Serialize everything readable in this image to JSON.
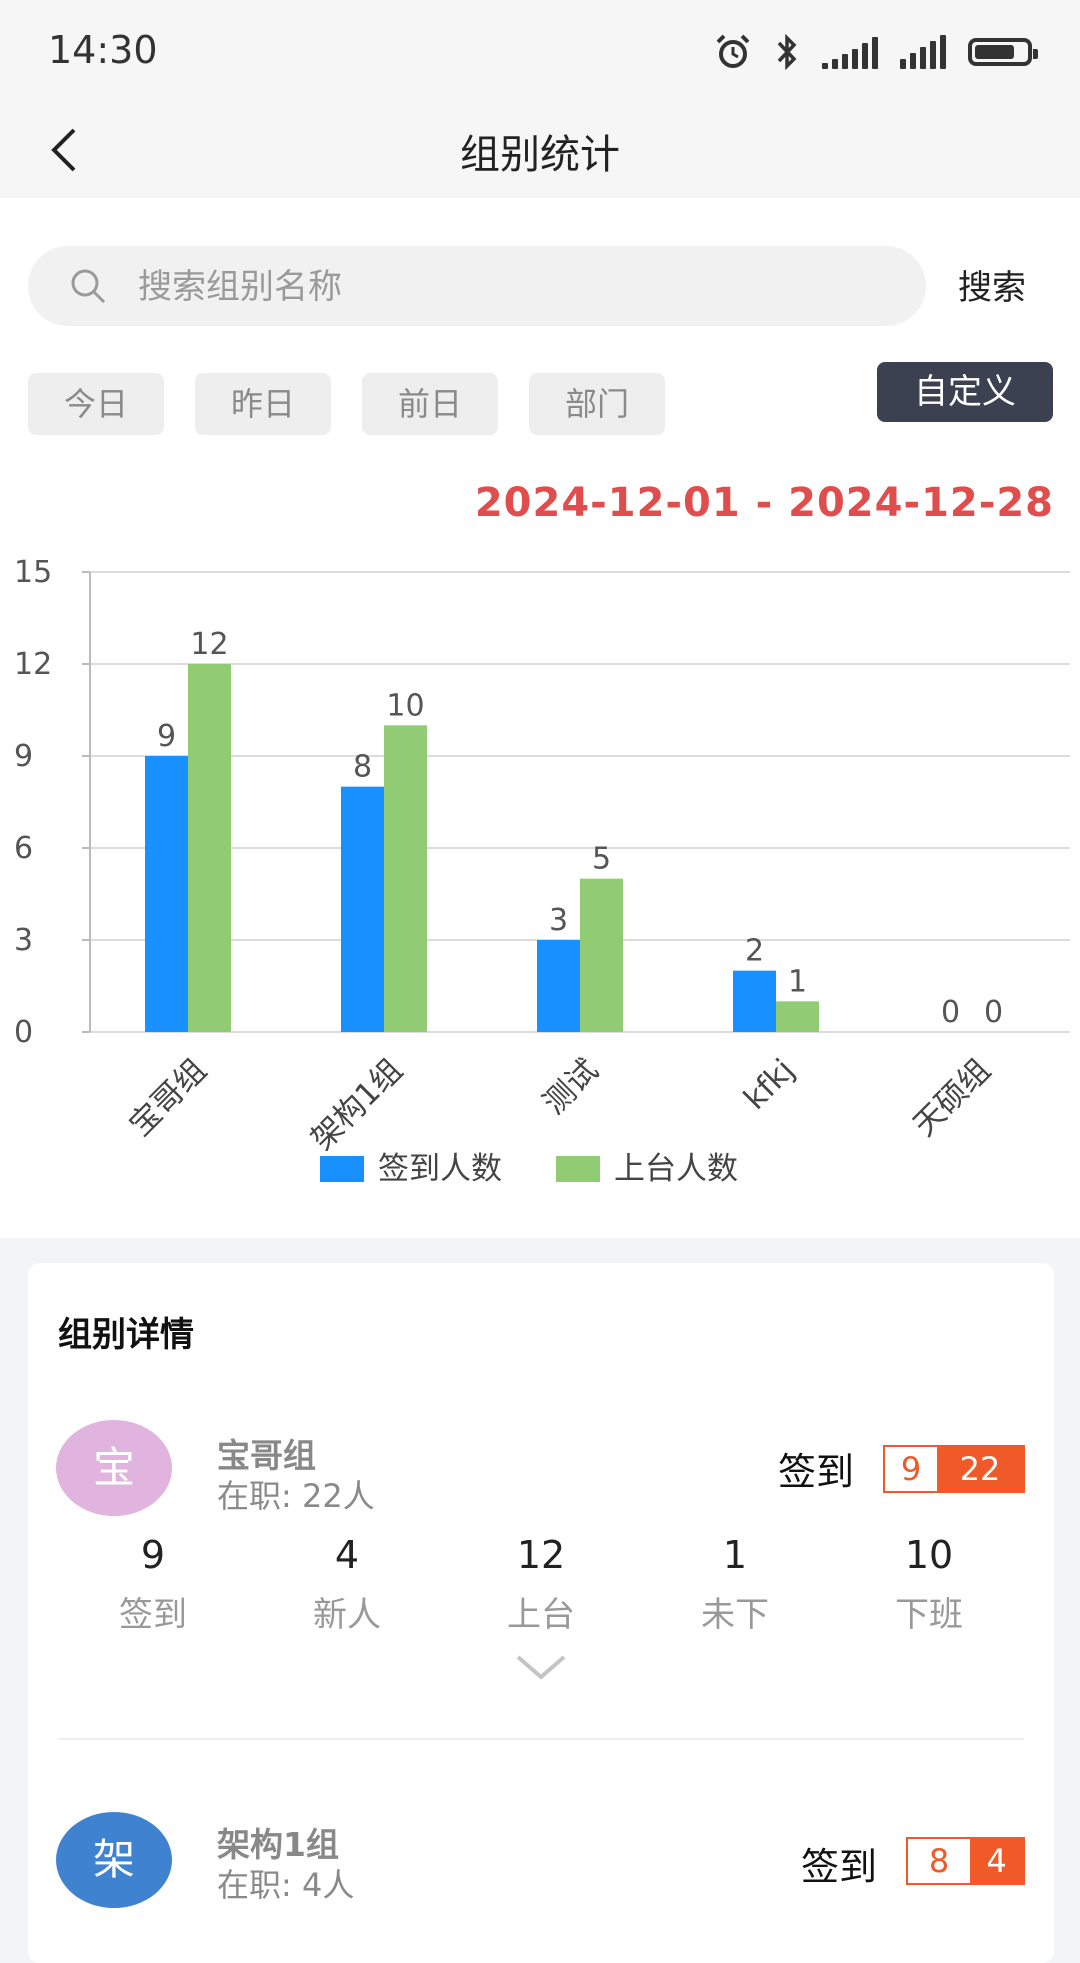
{
  "status_bar": {
    "time": "14:30",
    "icons": [
      "alarm-icon",
      "bluetooth-icon",
      "signal-icon",
      "signal-icon",
      "battery-icon"
    ]
  },
  "nav": {
    "title": "组别统计",
    "back_icon": "back-arrow-icon"
  },
  "search": {
    "placeholder": "搜索组别名称",
    "value": "",
    "button_label": "搜索",
    "icon": "search-icon"
  },
  "filters": [
    "今日",
    "昨日",
    "前日",
    "部门"
  ],
  "custom_label": "自定义",
  "date_range": "2024-12-01 - 2024-12-28",
  "colors": {
    "accent": "#e04d4d",
    "signin": "#1890ff",
    "stage": "#91cb74",
    "badge": "#ef5a28",
    "dark_button": "#3b4150"
  },
  "chart_data": {
    "type": "bar",
    "categories": [
      "宝哥组",
      "架构1组",
      "测试",
      "kfkj",
      "天硕组"
    ],
    "series": [
      {
        "name": "签到人数",
        "values": [
          9,
          8,
          3,
          2,
          0
        ]
      },
      {
        "name": "上台人数",
        "values": [
          12,
          10,
          5,
          1,
          0
        ]
      }
    ],
    "ylim": [
      0,
      15
    ],
    "yticks": [
      0,
      3,
      6,
      9,
      12,
      15
    ],
    "grid": true,
    "legend": "bottom",
    "data_labels": true
  },
  "details": {
    "title": "组别详情",
    "groups": [
      {
        "avatar_char": "宝",
        "avatar_color": "#e0b4de",
        "name": "宝哥组",
        "staff": "在职: 22人",
        "sign_label": "签到",
        "badge_a": "9",
        "badge_b": "22",
        "stats": [
          {
            "value": "9",
            "label": "签到"
          },
          {
            "value": "4",
            "label": "新人"
          },
          {
            "value": "12",
            "label": "上台"
          },
          {
            "value": "1",
            "label": "未下"
          },
          {
            "value": "10",
            "label": "下班"
          }
        ],
        "expand_icon": "chevron-down-icon"
      },
      {
        "avatar_char": "架",
        "avatar_color": "#3f82d0",
        "name": "架构1组",
        "staff": "在职: 4人",
        "sign_label": "签到",
        "badge_a": "8",
        "badge_b": "4"
      }
    ]
  }
}
